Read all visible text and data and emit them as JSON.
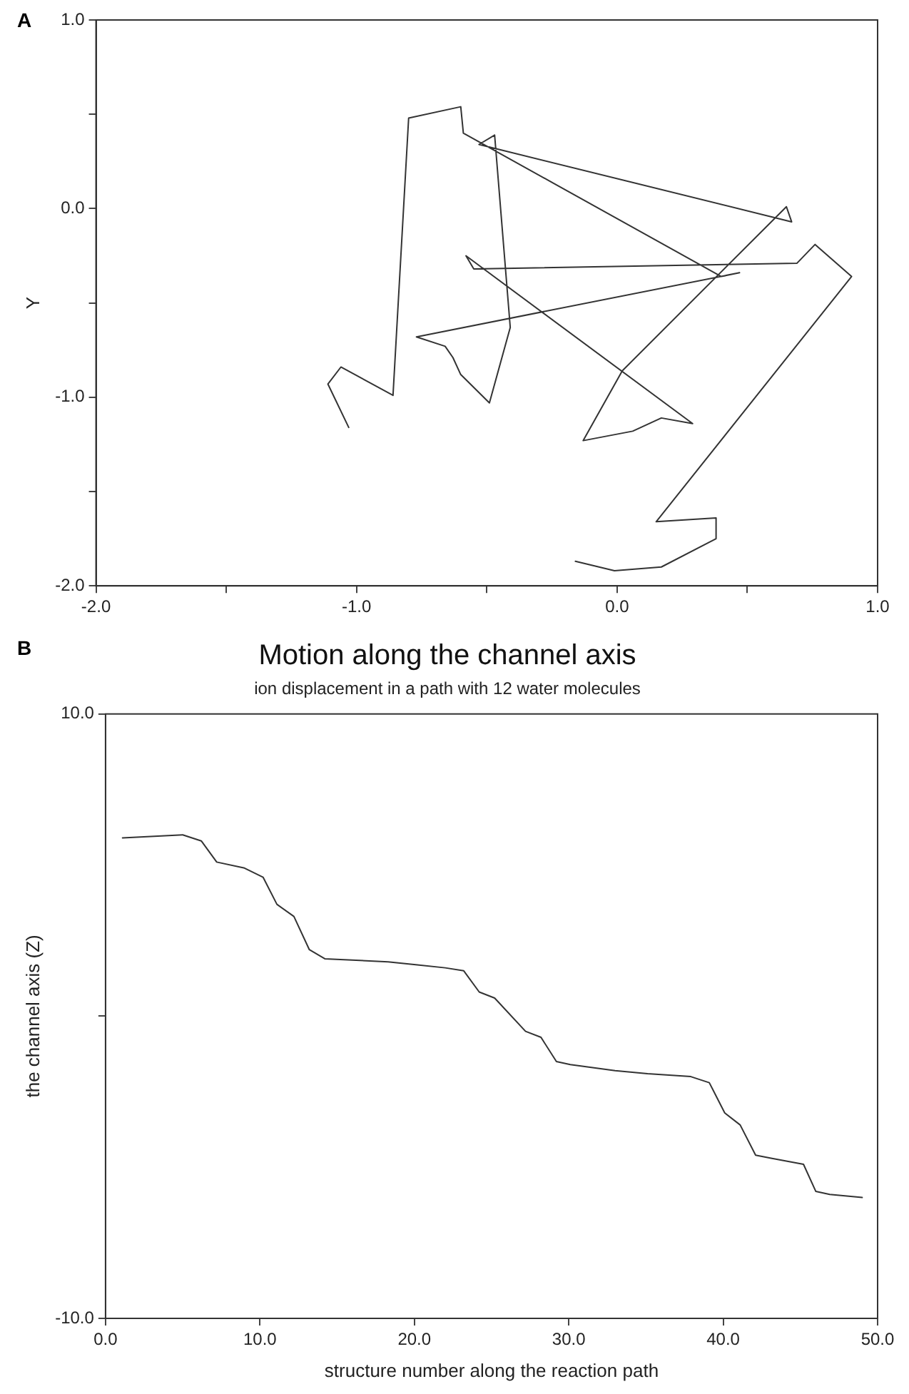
{
  "chart_data": [
    {
      "type": "line",
      "annotations": [
        "A"
      ],
      "ylabel": "Y",
      "xlim": [
        -2.0,
        1.0
      ],
      "ylim": [
        -2.0,
        1.0
      ],
      "xticks": [
        {
          "value": -2.0,
          "label": "-2.0"
        },
        {
          "value": -1.5,
          "label": null
        },
        {
          "value": -1.0,
          "label": "-1.0"
        },
        {
          "value": -0.5,
          "label": null
        },
        {
          "value": 0.0,
          "label": "0.0"
        },
        {
          "value": 0.5,
          "label": null
        },
        {
          "value": 1.0,
          "label": "1.0"
        }
      ],
      "yticks": [
        {
          "value": -2.0,
          "label": "-2.0"
        },
        {
          "value": -1.5,
          "label": null
        },
        {
          "value": -1.0,
          "label": "-1.0"
        },
        {
          "value": -0.5,
          "label": null
        },
        {
          "value": 0.0,
          "label": "0.0"
        },
        {
          "value": 0.5,
          "label": null
        },
        {
          "value": 1.0,
          "label": "1.0"
        }
      ],
      "grid": false,
      "legend": false,
      "marker": "none",
      "line_style": "solid",
      "series": [
        {
          "color": "#333333",
          "x": [
            -1.03,
            -1.11,
            -1.06,
            -0.86,
            -0.8,
            -0.6,
            -0.59,
            0.4,
            0.47,
            -0.77,
            -0.66,
            -0.63,
            -0.6,
            -0.49,
            -0.41,
            -0.47,
            -0.53,
            0.67,
            0.65,
            0.02,
            -0.13,
            0.06,
            0.17,
            0.29,
            -0.58,
            -0.55,
            0.69,
            0.76,
            0.9,
            0.15,
            0.38,
            0.38,
            0.17,
            -0.01,
            -0.16
          ],
          "values": [
            -1.16,
            -0.93,
            -0.84,
            -0.99,
            0.48,
            0.54,
            0.4,
            -0.36,
            -0.34,
            -0.68,
            -0.73,
            -0.79,
            -0.88,
            -1.03,
            -0.63,
            0.39,
            0.34,
            -0.07,
            0.01,
            -0.86,
            -1.23,
            -1.18,
            -1.11,
            -1.14,
            -0.25,
            -0.32,
            -0.29,
            -0.19,
            -0.36,
            -1.66,
            -1.64,
            -1.75,
            -1.9,
            -1.92,
            -1.87
          ]
        }
      ]
    },
    {
      "type": "line",
      "annotations": [
        "B"
      ],
      "title": "Motion along the channel axis",
      "subtitle": "ion displacement in a path with 12 water molecules",
      "xlabel": "structure number along the reaction path",
      "ylabel": "the channel axis (Z)",
      "xlim": [
        0.0,
        50.0
      ],
      "ylim": [
        -10.0,
        10.0
      ],
      "xticks": [
        {
          "value": 0,
          "label": "0.0"
        },
        {
          "value": 10,
          "label": "10.0"
        },
        {
          "value": 20,
          "label": "20.0"
        },
        {
          "value": 30,
          "label": "30.0"
        },
        {
          "value": 40,
          "label": "40.0"
        },
        {
          "value": 50,
          "label": "50.0"
        }
      ],
      "yticks": [
        {
          "value": -10,
          "label": "-10.0"
        },
        {
          "value": 0,
          "label": null
        },
        {
          "value": 10,
          "label": "10.0"
        }
      ],
      "grid": false,
      "legend": false,
      "marker": "none",
      "line_style": "solid",
      "series": [
        {
          "color": "#333333",
          "x": [
            1.1,
            5.0,
            6.2,
            7.2,
            9.0,
            10.2,
            11.1,
            12.2,
            13.2,
            14.2,
            18.3,
            20.2,
            22.0,
            23.2,
            24.2,
            25.2,
            27.2,
            28.2,
            29.2,
            30.1,
            33.0,
            35.1,
            37.9,
            39.1,
            40.1,
            41.1,
            42.1,
            43.1,
            45.2,
            46.0,
            46.9,
            49.0
          ],
          "values": [
            5.9,
            6.0,
            5.8,
            5.1,
            4.9,
            4.6,
            3.7,
            3.3,
            2.2,
            1.9,
            1.8,
            1.7,
            1.6,
            1.5,
            0.8,
            0.6,
            -0.5,
            -0.7,
            -1.5,
            -1.6,
            -1.8,
            -1.9,
            -2.0,
            -2.2,
            -3.2,
            -3.6,
            -4.6,
            -4.7,
            -4.9,
            -5.8,
            -5.9,
            -6.0
          ]
        }
      ]
    }
  ]
}
